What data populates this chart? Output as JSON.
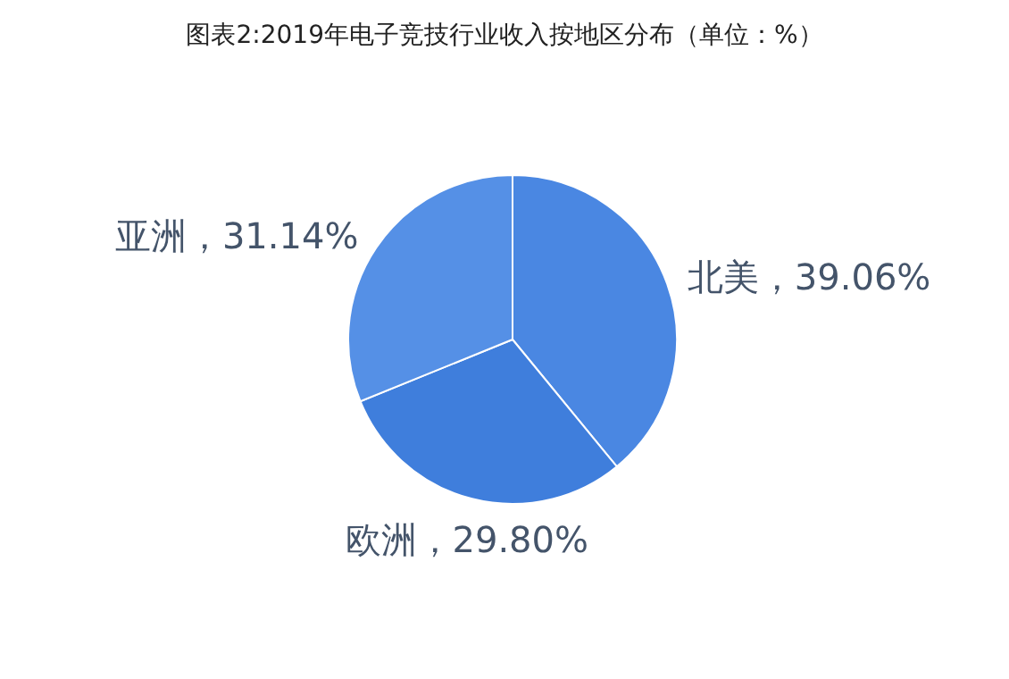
{
  "chart_data": {
    "type": "pie",
    "title": "图表2:2019年电子竞技行业收入按地区分布（单位：%）",
    "categories": [
      "北美",
      "欧洲",
      "亚洲"
    ],
    "values": [
      39.06,
      29.8,
      31.14
    ],
    "colors": [
      "#4a87e2",
      "#3f7edc",
      "#5590e6"
    ],
    "value_labels": [
      "，39.06%",
      "，29.80%",
      "，31.14%"
    ]
  }
}
